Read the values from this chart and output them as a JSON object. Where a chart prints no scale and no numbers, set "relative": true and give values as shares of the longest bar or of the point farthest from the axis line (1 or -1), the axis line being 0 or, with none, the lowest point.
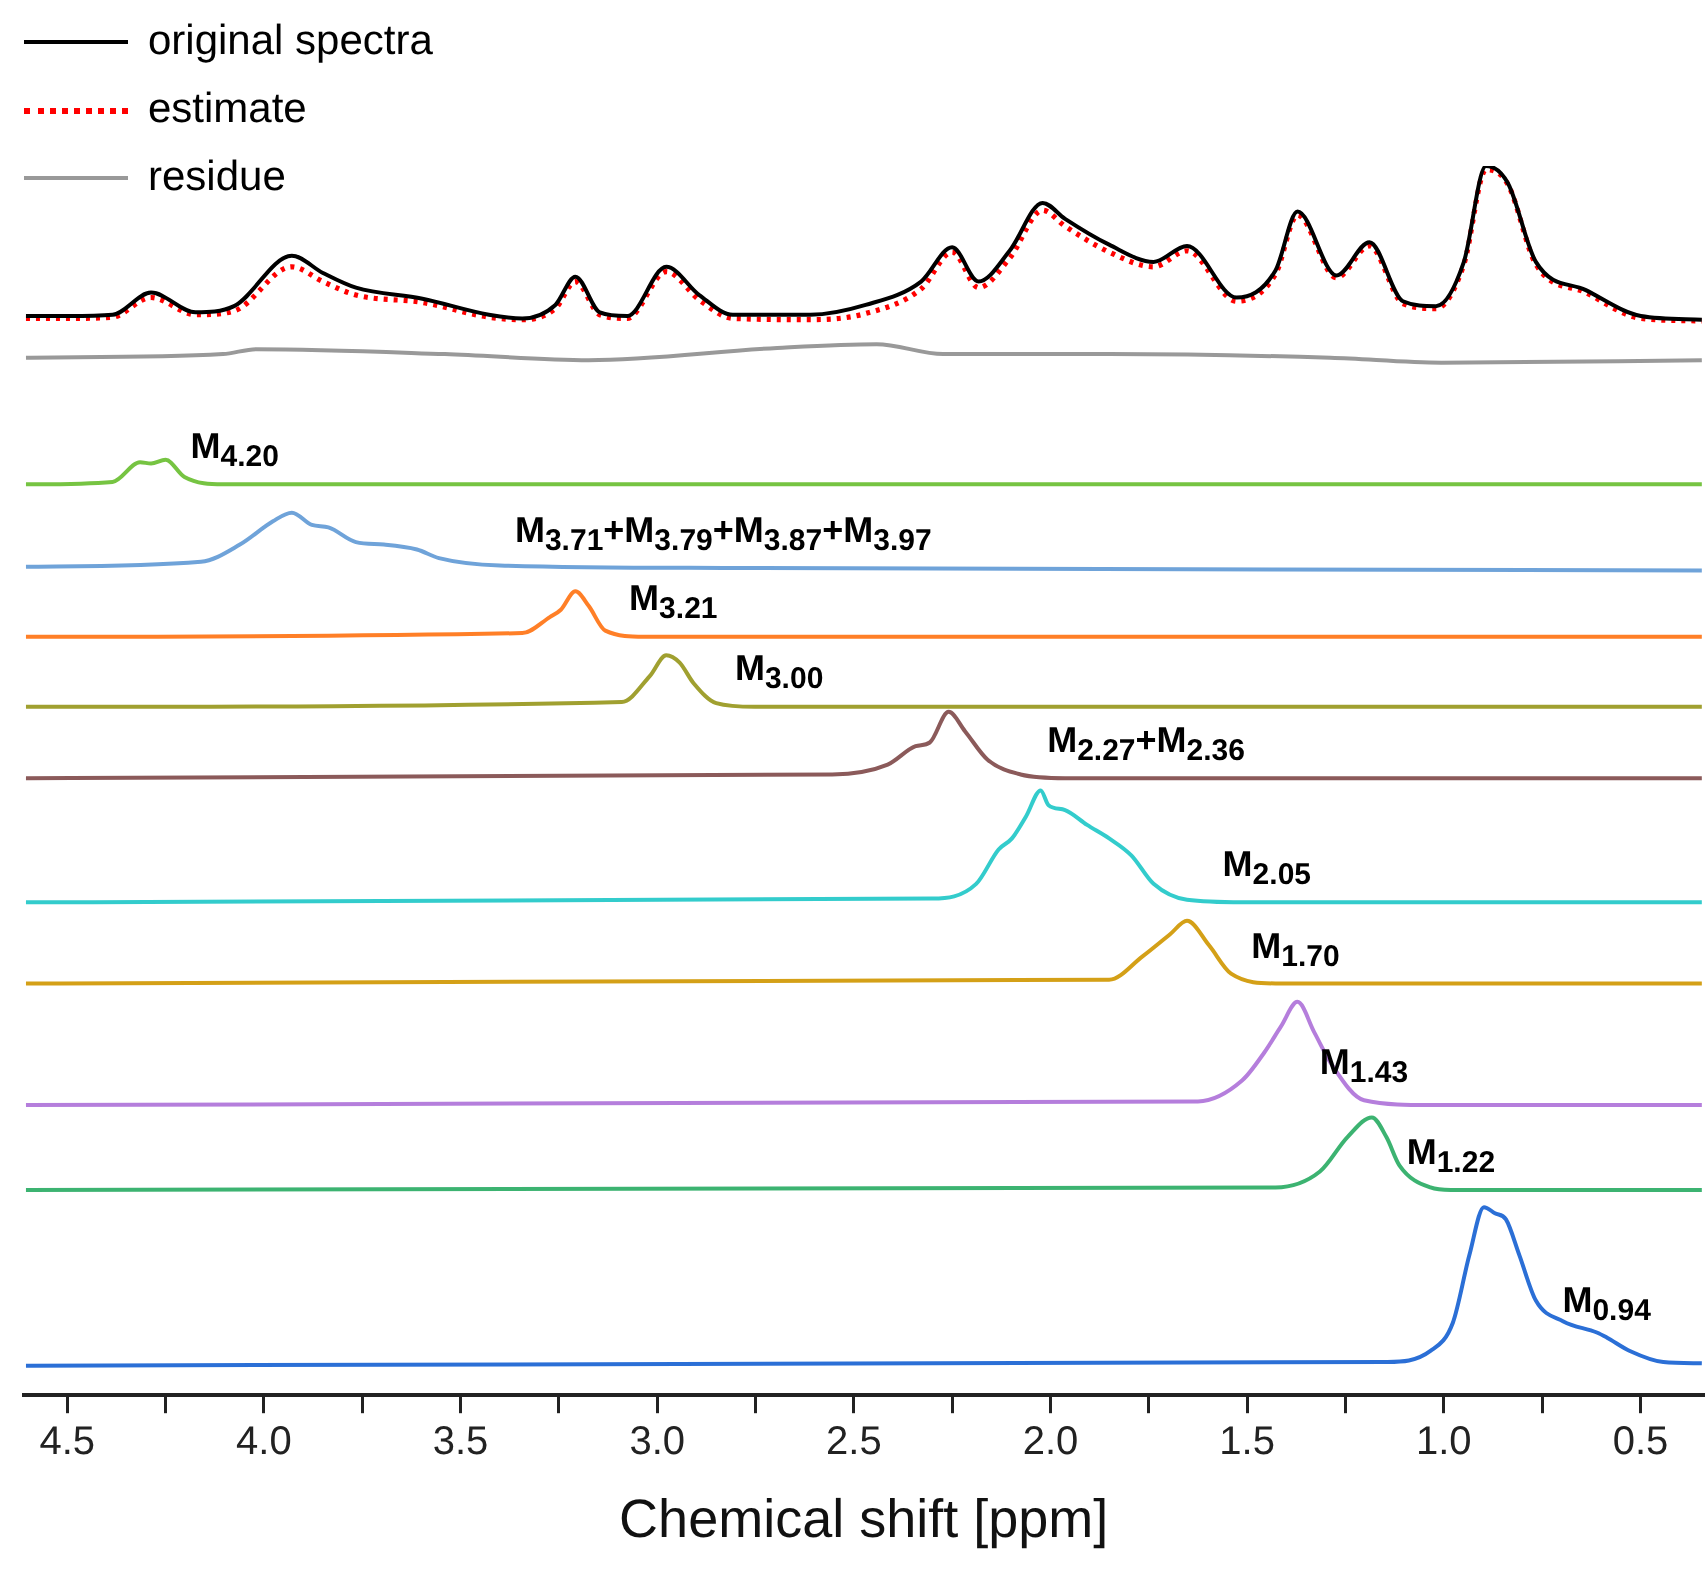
{
  "chart_data": {
    "type": "line",
    "relative": true,
    "xlabel": "Chemical shift [ppm]",
    "xlim": [
      4.61,
      0.34
    ],
    "xticks": [
      4.5,
      {
        "value": 4.25,
        "label": null
      },
      {
        "value": 4,
        "label": "4.0"
      },
      {
        "value": 3.75,
        "label": null
      },
      3.5,
      {
        "value": 3.25,
        "label": null
      },
      {
        "value": 3,
        "label": "3.0"
      },
      {
        "value": 2.75,
        "label": null
      },
      2.5,
      {
        "value": 2.25,
        "label": null
      },
      {
        "value": 2,
        "label": "2.0"
      },
      {
        "value": 1.75,
        "label": null
      },
      1.5,
      {
        "value": 1.25,
        "label": null
      },
      {
        "value": 1,
        "label": "1.0"
      },
      {
        "value": 0.75,
        "label": null
      },
      0.5
    ],
    "grid": false,
    "legend": "top left",
    "marker": "none",
    "tick_labels": "x",
    "series": [
      {
        "name": "original spectra",
        "color": "#000000",
        "x": [
          4.605,
          4.498,
          4.385,
          4.287,
          4.174,
          4.076,
          3.929,
          3.85,
          3.766,
          3.597,
          3.428,
          3.343,
          3.259,
          3.208,
          3.146,
          3.076,
          2.977,
          2.893,
          2.808,
          2.611,
          2.47,
          2.329,
          2.25,
          2.183,
          2.104,
          2.02,
          1.963,
          1.851,
          1.738,
          1.653,
          1.527,
          1.428,
          1.372,
          1.273,
          1.189,
          1.104,
          1.02,
          0.949,
          0.893,
          0.837,
          0.766,
          0.639,
          0.499,
          0.344
        ],
        "values": [
          0.878,
          0.878,
          0.879,
          0.897,
          0.881,
          0.886,
          0.927,
          0.913,
          0.901,
          0.892,
          0.879,
          0.876,
          0.887,
          0.91,
          0.881,
          0.878,
          0.918,
          0.895,
          0.879,
          0.879,
          0.887,
          0.906,
          0.934,
          0.906,
          0.931,
          0.97,
          0.957,
          0.936,
          0.922,
          0.935,
          0.893,
          0.915,
          0.963,
          0.911,
          0.938,
          0.89,
          0.886,
          0.922,
          1.0,
          0.986,
          0.922,
          0.899,
          0.878,
          0.875
        ]
      },
      {
        "name": "estimate",
        "color": "#ff0000",
        "line_style": "dotted",
        "x": [
          4.605,
          4.498,
          4.385,
          4.287,
          4.174,
          4.076,
          3.929,
          3.85,
          3.766,
          3.597,
          3.428,
          3.343,
          3.259,
          3.208,
          3.146,
          3.076,
          2.977,
          2.893,
          2.808,
          2.611,
          2.47,
          2.329,
          2.25,
          2.183,
          2.104,
          2.02,
          1.963,
          1.851,
          1.738,
          1.653,
          1.527,
          1.428,
          1.372,
          1.273,
          1.189,
          1.104,
          1.02,
          0.949,
          0.893,
          0.837,
          0.766,
          0.639,
          0.499,
          0.344
        ],
        "values": [
          0.876,
          0.876,
          0.877,
          0.893,
          0.879,
          0.882,
          0.918,
          0.906,
          0.895,
          0.889,
          0.877,
          0.875,
          0.884,
          0.906,
          0.879,
          0.876,
          0.914,
          0.891,
          0.876,
          0.875,
          0.88,
          0.9,
          0.93,
          0.901,
          0.925,
          0.964,
          0.951,
          0.93,
          0.918,
          0.931,
          0.89,
          0.912,
          0.96,
          0.909,
          0.935,
          0.888,
          0.884,
          0.92,
          0.997,
          0.985,
          0.92,
          0.897,
          0.876,
          0.874
        ]
      },
      {
        "name": "residue",
        "color": "#999999",
        "x": [
          4.605,
          4.104,
          4.019,
          3.54,
          3.174,
          2.695,
          2.442,
          2.273,
          1.851,
          1.288,
          1.006,
          0.344
        ],
        "values": [
          0.844,
          0.847,
          0.851,
          0.847,
          0.842,
          0.852,
          0.855,
          0.847,
          0.847,
          0.844,
          0.84,
          0.842
        ]
      },
      {
        "color": "#76c442",
        "x": [
          4.605,
          4.385,
          4.315,
          4.287,
          4.25,
          4.202,
          4.104,
          4.074,
          0.344
        ],
        "values": [
          0.741,
          0.743,
          0.759,
          0.758,
          0.761,
          0.747,
          0.741,
          0.741,
          0.741
        ]
      },
      {
        "color": "#6fa3d9",
        "x": [
          4.605,
          4.16,
          4.061,
          3.977,
          3.929,
          3.878,
          3.836,
          3.766,
          3.695,
          3.611,
          3.555,
          3.4,
          2.832,
          0.344
        ],
        "values": [
          0.674,
          0.678,
          0.692,
          0.711,
          0.718,
          0.708,
          0.706,
          0.694,
          0.692,
          0.688,
          0.681,
          0.675,
          0.673,
          0.671
        ]
      },
      {
        "color": "#ff7f27",
        "x": [
          4.605,
          3.343,
          3.273,
          3.245,
          3.208,
          3.174,
          3.132,
          3.033,
          2.959,
          0.344
        ],
        "values": [
          0.617,
          0.62,
          0.633,
          0.639,
          0.654,
          0.642,
          0.622,
          0.617,
          0.617,
          0.617
        ]
      },
      {
        "color": "#a0a030",
        "x": [
          4.605,
          3.09,
          3.019,
          2.977,
          2.943,
          2.907,
          2.85,
          2.752,
          2.69,
          0.344
        ],
        "values": [
          0.56,
          0.564,
          0.585,
          0.602,
          0.596,
          0.579,
          0.563,
          0.56,
          0.56,
          0.56
        ]
      },
      {
        "color": "#8b5a5a",
        "x": [
          4.605,
          2.555,
          2.414,
          2.343,
          2.307,
          2.259,
          2.217,
          2.16,
          2.076,
          1.963,
          1.757,
          0.344
        ],
        "values": [
          0.502,
          0.505,
          0.513,
          0.528,
          0.531,
          0.556,
          0.54,
          0.517,
          0.505,
          0.502,
          0.502,
          0.502
        ]
      },
      {
        "color": "#33cccc",
        "x": [
          4.605,
          2.301,
          2.189,
          2.132,
          2.098,
          2.062,
          2.025,
          2.005,
          1.963,
          1.907,
          1.851,
          1.794,
          1.738,
          1.653,
          1.513,
          1.45,
          0.344
        ],
        "values": [
          0.401,
          0.404,
          0.416,
          0.444,
          0.453,
          0.471,
          0.492,
          0.48,
          0.476,
          0.464,
          0.453,
          0.439,
          0.416,
          0.403,
          0.401,
          0.401,
          0.401
        ]
      },
      {
        "color": "#d4a017",
        "x": [
          4.605,
          1.851,
          1.766,
          1.696,
          1.653,
          1.597,
          1.541,
          1.428,
          1.377,
          0.344
        ],
        "values": [
          0.335,
          0.338,
          0.357,
          0.375,
          0.386,
          0.366,
          0.343,
          0.335,
          0.335,
          0.335
        ]
      },
      {
        "color": "#b57edc",
        "x": [
          4.605,
          1.625,
          1.513,
          1.456,
          1.414,
          1.372,
          1.329,
          1.287,
          1.203,
          1.034,
          0.344
        ],
        "values": [
          0.236,
          0.239,
          0.256,
          0.279,
          0.3,
          0.32,
          0.295,
          0.27,
          0.24,
          0.236,
          0.236
        ]
      },
      {
        "color": "#3cb371",
        "x": [
          4.605,
          1.428,
          1.315,
          1.245,
          1.183,
          1.146,
          1.113,
          1.034,
          0.982,
          0.344
        ],
        "values": [
          0.167,
          0.169,
          0.182,
          0.21,
          0.226,
          0.21,
          0.187,
          0.169,
          0.167,
          0.167
        ]
      },
      {
        "color": "#2b6fd6",
        "x": [
          4.605,
          1.146,
          1.034,
          0.977,
          0.935,
          0.898,
          0.87,
          0.842,
          0.808,
          0.766,
          0.696,
          0.611,
          0.586,
          0.527,
          0.442,
          0.344
        ],
        "values": [
          0.024,
          0.027,
          0.036,
          0.059,
          0.114,
          0.153,
          0.148,
          0.143,
          0.114,
          0.077,
          0.06,
          0.051,
          0.047,
          0.036,
          0.027,
          0.026
        ]
      }
    ],
    "annotations": [
      {
        "text": "M$_{4.20}$",
        "x": 4.074,
        "y": 0.741
      },
      {
        "text": "M$_{3.71}$+M$_{3.79}$+M$_{3.87}$+M$_{3.97}$",
        "x": 2.832,
        "y": 0.673
      },
      {
        "text": "M$_{3.21}$",
        "x": 2.959,
        "y": 0.617
      },
      {
        "text": "M$_{3.00}$",
        "x": 2.69,
        "y": 0.56
      },
      {
        "text": "M$_{2.27}$+M$_{2.36}$",
        "x": 1.757,
        "y": 0.502
      },
      {
        "text": "M$_{2.05}$",
        "x": 1.45,
        "y": 0.401
      },
      {
        "text": "M$_{1.70}$",
        "x": 1.377,
        "y": 0.335
      },
      {
        "text": "M$_{1.43}$",
        "x": 1.203,
        "y": 0.24
      },
      {
        "text": "M$_{1.22}$",
        "x": 0.982,
        "y": 0.167
      },
      {
        "text": "M$_{0.94}$",
        "x": 0.586,
        "y": 0.047
      }
    ]
  }
}
